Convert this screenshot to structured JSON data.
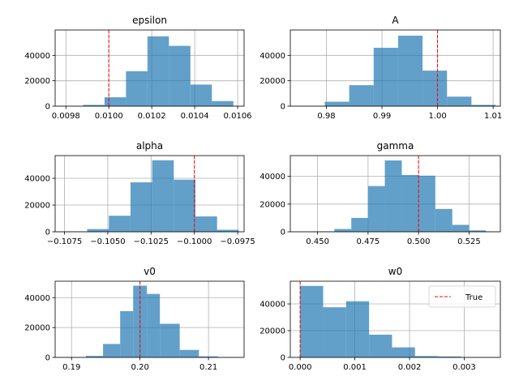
{
  "chart_data": [
    {
      "type": "histogram",
      "title": "epsilon",
      "xlim": [
        0.00975,
        0.01063
      ],
      "ylim": [
        0,
        60000
      ],
      "xticks": [
        0.0098,
        0.01,
        0.0102,
        0.0104,
        0.0106
      ],
      "xtick_labels": [
        "0.0098",
        "0.0100",
        "0.0102",
        "0.0104",
        "0.0106"
      ],
      "yticks": [
        0,
        20000,
        40000
      ],
      "ytick_labels": [
        "0",
        "20000",
        "40000"
      ],
      "bins": [
        0.00978,
        0.00988,
        0.00998,
        0.01008,
        0.01018,
        0.01028,
        0.01038,
        0.01048,
        0.01058
      ],
      "counts": [
        200,
        1000,
        7000,
        27500,
        55000,
        47500,
        17000,
        4000
      ],
      "true_value": 0.01,
      "grid": true
    },
    {
      "type": "histogram",
      "title": "A",
      "xlim": [
        0.9735,
        1.0113
      ],
      "ylim": [
        0,
        60000
      ],
      "xticks": [
        0.98,
        0.99,
        1.0,
        1.01
      ],
      "xtick_labels": [
        "0.98",
        "0.99",
        "1.00",
        "1.01"
      ],
      "yticks": [
        0,
        20000,
        40000
      ],
      "ytick_labels": [
        "0",
        "20000",
        "40000"
      ],
      "bins": [
        0.9753,
        0.9797,
        0.9841,
        0.9885,
        0.9929,
        0.9973,
        1.0017,
        1.0061,
        1.0105
      ],
      "counts": [
        100,
        3500,
        16500,
        46000,
        55500,
        28000,
        7500,
        1000
      ],
      "true_value": 1.0,
      "grid": true
    },
    {
      "type": "histogram",
      "title": "alpha",
      "xlim": [
        -0.10804,
        -0.09713
      ],
      "ylim": [
        0,
        57000
      ],
      "xticks": [
        -0.1075,
        -0.105,
        -0.1025,
        -0.1,
        -0.0975
      ],
      "xtick_labels": [
        "−0.1075",
        "−0.1050",
        "−0.1025",
        "−0.1000",
        "−0.0975"
      ],
      "yticks": [
        0,
        20000,
        40000
      ],
      "ytick_labels": [
        "0",
        "20000",
        "40000"
      ],
      "bins": [
        -0.10744,
        -0.10619,
        -0.10494,
        -0.10369,
        -0.10244,
        -0.10119,
        -0.09994,
        -0.09869,
        -0.09744
      ],
      "counts": [
        200,
        2000,
        12000,
        37000,
        53500,
        39000,
        11500,
        1500
      ],
      "true_value": -0.1,
      "grid": true
    },
    {
      "type": "histogram",
      "title": "gamma",
      "xlim": [
        0.4365,
        0.5405
      ],
      "ylim": [
        0,
        55000
      ],
      "xticks": [
        0.45,
        0.475,
        0.5,
        0.525
      ],
      "xtick_labels": [
        "0.450",
        "0.475",
        "0.500",
        "0.525"
      ],
      "yticks": [
        0,
        20000,
        40000
      ],
      "ytick_labels": [
        "0",
        "20000",
        "40000"
      ],
      "bins": [
        0.4467,
        0.4583,
        0.4667,
        0.475,
        0.4833,
        0.4917,
        0.5,
        0.5083,
        0.5167,
        0.525,
        0.5333,
        0.537
      ],
      "counts": [
        200,
        2000,
        10000,
        33000,
        51500,
        41000,
        40500,
        16500,
        5000,
        1000,
        200
      ],
      "true_value": 0.5,
      "grid": true
    },
    {
      "type": "histogram",
      "title": "v0",
      "xlim": [
        0.1876,
        0.2152
      ],
      "ylim": [
        0,
        51000
      ],
      "xticks": [
        0.19,
        0.2,
        0.21
      ],
      "xtick_labels": [
        "0.19",
        "0.20",
        "0.21"
      ],
      "yticks": [
        0,
        20000,
        40000
      ],
      "ytick_labels": [
        "0",
        "20000",
        "40000"
      ],
      "bins": [
        0.1889,
        0.1921,
        0.1946,
        0.1971,
        0.199,
        0.201,
        0.2029,
        0.2058,
        0.2086,
        0.2114,
        0.2139
      ],
      "counts": [
        200,
        1000,
        9000,
        31000,
        48000,
        42500,
        22500,
        5000,
        700,
        100
      ],
      "true_value": 0.2,
      "grid": true
    },
    {
      "type": "histogram",
      "title": "w0",
      "xlim": [
        -0.00018,
        0.00366
      ],
      "ylim": [
        0,
        57000
      ],
      "xticks": [
        0.0,
        0.001,
        0.002,
        0.003
      ],
      "xtick_labels": [
        "0.000",
        "0.001",
        "0.002",
        "0.003"
      ],
      "yticks": [
        0,
        20000,
        40000
      ],
      "ytick_labels": [
        "0",
        "20000",
        "40000"
      ],
      "bins": [
        0.0,
        0.00042,
        0.00084,
        0.00126,
        0.00168,
        0.0021,
        0.00252,
        0.00294,
        0.00336
      ],
      "counts": [
        53500,
        37500,
        42000,
        17000,
        7500,
        1000,
        700,
        100
      ],
      "true_value": 0.0,
      "grid": true,
      "legend": {
        "label": "True",
        "position": "upper right"
      }
    }
  ],
  "colors": {
    "bar": "#1f77b4",
    "bar_alpha": 0.7,
    "true_line": "#ff0000",
    "grid": "#b0b0b0",
    "axes": "#000000",
    "background": "#ffffff"
  }
}
